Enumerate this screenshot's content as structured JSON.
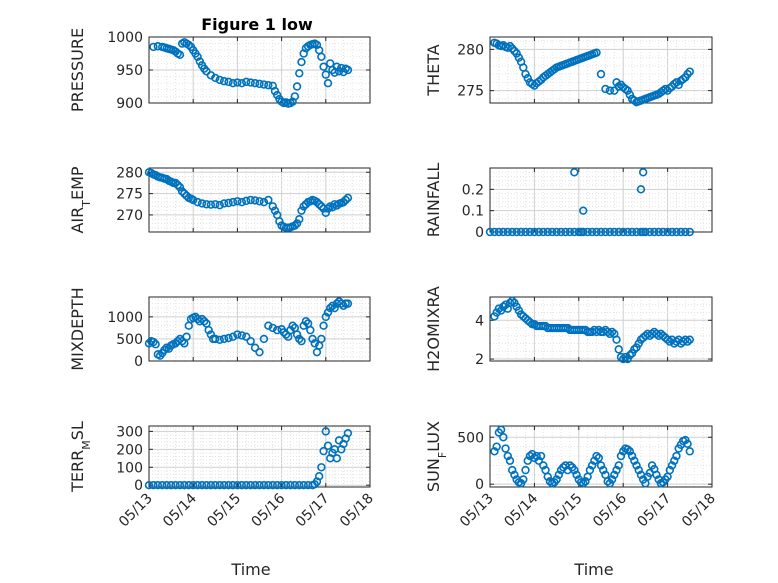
{
  "figure": {
    "title": "Figure 1 low",
    "xlabel": "Time",
    "x_ticks": [
      "05/13",
      "05/14",
      "05/15",
      "05/16",
      "05/17",
      "05/18"
    ]
  },
  "colors": {
    "marker": "#0072BD",
    "grid": "#d9d9d9",
    "axis": "#262626"
  },
  "chart_data": [
    {
      "type": "scatter",
      "ylabel": "PRESSURE",
      "ylim": [
        900,
        1000
      ],
      "yticks": [
        900,
        950,
        1000
      ],
      "ytick_labels": [
        "900",
        "950",
        "1000"
      ],
      "x": [
        13.1,
        13.2,
        13.3,
        13.35,
        13.4,
        13.45,
        13.5,
        13.55,
        13.6,
        13.65,
        13.7,
        13.75,
        13.8,
        13.85,
        13.9,
        13.95,
        14.0,
        14.05,
        14.1,
        14.15,
        14.2,
        14.25,
        14.3,
        14.4,
        14.5,
        14.6,
        14.7,
        14.8,
        14.9,
        15.0,
        15.1,
        15.2,
        15.3,
        15.4,
        15.5,
        15.6,
        15.7,
        15.8,
        15.85,
        15.9,
        15.95,
        16.0,
        16.05,
        16.1,
        16.15,
        16.2,
        16.25,
        16.3,
        16.35,
        16.4,
        16.45,
        16.5,
        16.55,
        16.6,
        16.65,
        16.7,
        16.75,
        16.8,
        16.85,
        16.9,
        16.95,
        17.0,
        17.05,
        17.1,
        17.15,
        17.2,
        17.25,
        17.3,
        17.35,
        17.4,
        17.45,
        17.5
      ],
      "y": [
        985,
        986,
        985,
        984,
        983,
        982,
        981,
        980,
        978,
        975,
        973,
        990,
        992,
        990,
        988,
        985,
        980,
        975,
        970,
        963,
        957,
        952,
        948,
        942,
        938,
        935,
        933,
        932,
        930,
        931,
        930,
        932,
        931,
        930,
        929,
        928,
        927,
        926,
        918,
        912,
        906,
        902,
        900,
        901,
        899,
        900,
        902,
        910,
        925,
        945,
        962,
        975,
        983,
        986,
        988,
        989,
        990,
        988,
        980,
        970,
        955,
        943,
        930,
        960,
        950,
        946,
        955,
        948,
        953,
        947,
        952,
        950
      ]
    },
    {
      "type": "scatter",
      "ylabel": "THETA",
      "ylim": [
        273.5,
        281.5
      ],
      "yticks": [
        275,
        280
      ],
      "ytick_labels": [
        "275",
        "280"
      ],
      "x": [
        13.1,
        13.15,
        13.2,
        13.25,
        13.3,
        13.35,
        13.4,
        13.45,
        13.5,
        13.55,
        13.6,
        13.65,
        13.7,
        13.75,
        13.8,
        13.85,
        13.9,
        13.95,
        14.0,
        14.05,
        14.1,
        14.15,
        14.2,
        14.25,
        14.3,
        14.35,
        14.4,
        14.45,
        14.5,
        14.55,
        14.6,
        14.65,
        14.7,
        14.75,
        14.8,
        14.85,
        14.9,
        14.95,
        15.0,
        15.05,
        15.1,
        15.15,
        15.2,
        15.25,
        15.3,
        15.35,
        15.4,
        15.5,
        15.6,
        15.7,
        15.8,
        15.85,
        15.9,
        15.95,
        16.0,
        16.05,
        16.1,
        16.15,
        16.2,
        16.25,
        16.3,
        16.35,
        16.4,
        16.45,
        16.5,
        16.55,
        16.6,
        16.65,
        16.7,
        16.75,
        16.8,
        16.85,
        16.9,
        16.95,
        17.0,
        17.05,
        17.1,
        17.15,
        17.2,
        17.25,
        17.3,
        17.35,
        17.4,
        17.45,
        17.5
      ],
      "y": [
        280.8,
        280.7,
        280.5,
        280.4,
        280.5,
        280.3,
        280.2,
        280.4,
        280.1,
        279.8,
        279.5,
        279.0,
        278.5,
        277.8,
        277.0,
        276.5,
        276.0,
        275.8,
        275.6,
        275.9,
        276.1,
        276.3,
        276.6,
        276.8,
        277.0,
        277.2,
        277.4,
        277.6,
        277.8,
        277.9,
        278.0,
        278.1,
        278.2,
        278.3,
        278.4,
        278.5,
        278.6,
        278.7,
        278.8,
        278.9,
        279.0,
        279.1,
        279.2,
        279.3,
        279.4,
        279.5,
        279.6,
        277.0,
        275.2,
        275.0,
        275.0,
        276.0,
        275.5,
        275.7,
        275.4,
        275.2,
        275.0,
        274.5,
        274.0,
        273.8,
        273.6,
        273.7,
        273.8,
        273.9,
        274.0,
        274.1,
        274.2,
        274.3,
        274.4,
        274.5,
        274.6,
        274.8,
        275.0,
        275.2,
        275.0,
        275.3,
        275.5,
        275.8,
        276.0,
        275.7,
        276.2,
        276.4,
        276.6,
        277.0,
        277.3
      ]
    },
    {
      "type": "scatter",
      "ylabel": "AIR_TEMP",
      "ylim": [
        266,
        281
      ],
      "yticks": [
        270,
        275,
        280
      ],
      "ytick_labels": [
        "270",
        "275",
        "280"
      ],
      "x": [
        13.0,
        13.05,
        13.1,
        13.15,
        13.2,
        13.25,
        13.3,
        13.35,
        13.4,
        13.45,
        13.5,
        13.55,
        13.6,
        13.65,
        13.7,
        13.75,
        13.8,
        13.85,
        13.9,
        13.95,
        14.0,
        14.1,
        14.2,
        14.3,
        14.4,
        14.5,
        14.6,
        14.7,
        14.8,
        14.9,
        15.0,
        15.1,
        15.2,
        15.3,
        15.4,
        15.5,
        15.6,
        15.7,
        15.8,
        15.85,
        15.9,
        15.95,
        16.0,
        16.05,
        16.1,
        16.15,
        16.2,
        16.25,
        16.3,
        16.35,
        16.4,
        16.45,
        16.5,
        16.55,
        16.6,
        16.65,
        16.7,
        16.75,
        16.8,
        16.85,
        16.9,
        16.95,
        17.0,
        17.05,
        17.1,
        17.15,
        17.2,
        17.25,
        17.3,
        17.35,
        17.4,
        17.45,
        17.5
      ],
      "y": [
        280.0,
        279.8,
        279.5,
        279.3,
        279.0,
        278.8,
        278.7,
        278.5,
        278.4,
        278.0,
        277.8,
        277.5,
        277.5,
        277.0,
        276.5,
        275.5,
        275.0,
        274.5,
        274.0,
        273.8,
        273.5,
        273.0,
        272.7,
        272.5,
        272.4,
        272.5,
        272.3,
        272.7,
        272.8,
        273.0,
        273.2,
        273.0,
        273.3,
        273.5,
        273.4,
        273.2,
        273.0,
        273.5,
        272.0,
        271.0,
        270.0,
        268.5,
        267.5,
        267.2,
        267.0,
        267.0,
        267.1,
        267.3,
        267.5,
        268.0,
        269.0,
        271.0,
        272.0,
        272.5,
        273.0,
        273.2,
        273.5,
        273.3,
        273.0,
        272.5,
        272.0,
        271.5,
        270.5,
        271.5,
        272.0,
        271.8,
        272.5,
        272.2,
        272.6,
        272.8,
        273.0,
        273.5,
        274.0
      ]
    },
    {
      "type": "scatter",
      "ylabel": "RAINFALL",
      "ylim": [
        0,
        0.3
      ],
      "yticks": [
        0,
        0.1,
        0.2
      ],
      "ytick_labels": [
        "0",
        "0.1",
        "0.2"
      ],
      "x": [
        13.0,
        13.1,
        13.2,
        13.3,
        13.4,
        13.5,
        13.6,
        13.7,
        13.8,
        13.9,
        14.0,
        14.1,
        14.2,
        14.3,
        14.4,
        14.5,
        14.6,
        14.7,
        14.8,
        14.9,
        15.0,
        15.05,
        15.1,
        15.2,
        15.3,
        15.4,
        15.5,
        15.6,
        15.7,
        15.8,
        15.9,
        16.0,
        16.1,
        16.2,
        16.3,
        16.4,
        16.45,
        16.5,
        16.6,
        16.7,
        16.8,
        16.9,
        17.0,
        17.1,
        17.2,
        17.3,
        17.4,
        17.5,
        14.9,
        15.1,
        16.4,
        16.45
      ],
      "y": [
        0,
        0,
        0,
        0,
        0,
        0,
        0,
        0,
        0,
        0,
        0,
        0,
        0,
        0,
        0,
        0,
        0,
        0,
        0,
        0,
        0,
        0,
        0,
        0,
        0,
        0,
        0,
        0,
        0,
        0,
        0,
        0,
        0,
        0,
        0,
        0,
        0,
        0,
        0,
        0,
        0,
        0,
        0,
        0,
        0,
        0,
        0,
        0,
        0.28,
        0.1,
        0.2,
        0.28
      ]
    },
    {
      "type": "scatter",
      "ylabel": "MIXDEPTH",
      "ylim": [
        0,
        1450
      ],
      "yticks": [
        0,
        500,
        1000
      ],
      "ytick_labels": [
        "0",
        "500",
        "1000"
      ],
      "x": [
        13.0,
        13.05,
        13.1,
        13.15,
        13.2,
        13.25,
        13.3,
        13.35,
        13.4,
        13.45,
        13.5,
        13.55,
        13.6,
        13.65,
        13.7,
        13.75,
        13.8,
        13.85,
        13.9,
        13.95,
        14.0,
        14.05,
        14.1,
        14.15,
        14.2,
        14.25,
        14.3,
        14.35,
        14.4,
        14.45,
        14.5,
        14.6,
        14.7,
        14.8,
        14.9,
        15.0,
        15.1,
        15.2,
        15.3,
        15.4,
        15.5,
        15.6,
        15.7,
        15.8,
        15.9,
        16.0,
        16.05,
        16.1,
        16.15,
        16.2,
        16.25,
        16.3,
        16.35,
        16.4,
        16.45,
        16.5,
        16.55,
        16.6,
        16.65,
        16.7,
        16.75,
        16.8,
        16.85,
        16.9,
        16.95,
        17.0,
        17.05,
        17.1,
        17.15,
        17.2,
        17.25,
        17.3,
        17.35,
        17.4,
        17.45,
        17.5
      ],
      "y": [
        400,
        450,
        430,
        380,
        150,
        120,
        180,
        250,
        300,
        280,
        350,
        380,
        400,
        450,
        500,
        450,
        400,
        550,
        800,
        950,
        980,
        1000,
        950,
        900,
        950,
        900,
        850,
        700,
        600,
        500,
        500,
        480,
        500,
        520,
        550,
        600,
        580,
        550,
        450,
        300,
        200,
        500,
        800,
        750,
        700,
        720,
        650,
        600,
        550,
        700,
        800,
        750,
        600,
        500,
        450,
        800,
        900,
        850,
        700,
        500,
        400,
        200,
        350,
        500,
        800,
        1000,
        1100,
        1200,
        1250,
        1200,
        1300,
        1350,
        1300,
        1250,
        1300,
        1300
      ]
    },
    {
      "type": "scatter",
      "ylabel": "H2OMIXRA",
      "ylim": [
        1.9,
        5.2
      ],
      "yticks": [
        2,
        4
      ],
      "ytick_labels": [
        "2",
        "4"
      ],
      "x": [
        13.1,
        13.15,
        13.2,
        13.25,
        13.3,
        13.35,
        13.4,
        13.45,
        13.5,
        13.55,
        13.6,
        13.65,
        13.7,
        13.75,
        13.8,
        13.85,
        13.9,
        13.95,
        14.0,
        14.05,
        14.1,
        14.15,
        14.2,
        14.25,
        14.3,
        14.35,
        14.4,
        14.45,
        14.5,
        14.55,
        14.6,
        14.65,
        14.7,
        14.75,
        14.8,
        14.85,
        14.9,
        14.95,
        15.0,
        15.05,
        15.1,
        15.15,
        15.2,
        15.25,
        15.3,
        15.35,
        15.4,
        15.45,
        15.5,
        15.55,
        15.6,
        15.65,
        15.7,
        15.75,
        15.8,
        15.85,
        15.9,
        15.95,
        16.0,
        16.05,
        16.1,
        16.15,
        16.2,
        16.25,
        16.3,
        16.35,
        16.4,
        16.45,
        16.5,
        16.55,
        16.6,
        16.65,
        16.7,
        16.75,
        16.8,
        16.85,
        16.9,
        16.95,
        17.0,
        17.05,
        17.1,
        17.15,
        17.2,
        17.25,
        17.3,
        17.35,
        17.4,
        17.45,
        17.5
      ],
      "y": [
        4.2,
        4.4,
        4.6,
        4.5,
        4.7,
        4.8,
        4.6,
        4.9,
        5.0,
        4.9,
        4.7,
        4.5,
        4.3,
        4.2,
        4.1,
        4.0,
        3.9,
        3.8,
        3.8,
        3.7,
        3.7,
        3.7,
        3.7,
        3.7,
        3.6,
        3.6,
        3.6,
        3.6,
        3.6,
        3.6,
        3.6,
        3.6,
        3.6,
        3.6,
        3.5,
        3.5,
        3.5,
        3.5,
        3.5,
        3.5,
        3.5,
        3.5,
        3.4,
        3.4,
        3.4,
        3.5,
        3.4,
        3.5,
        3.4,
        3.4,
        3.5,
        3.4,
        3.3,
        3.4,
        3.3,
        3.0,
        2.5,
        2.1,
        2.0,
        2.1,
        2.0,
        2.2,
        2.3,
        2.5,
        2.6,
        2.8,
        3.0,
        3.1,
        3.2,
        3.3,
        3.2,
        3.3,
        3.4,
        3.3,
        3.2,
        3.3,
        3.2,
        3.1,
        3.0,
        2.9,
        3.0,
        2.8,
        2.9,
        3.0,
        2.8,
        2.9,
        3.0,
        2.9,
        3.0
      ]
    },
    {
      "type": "scatter",
      "ylabel": "TERR_MSL",
      "ylim": [
        -10,
        330
      ],
      "yticks": [
        0,
        100,
        200,
        300
      ],
      "ytick_labels": [
        "0",
        "100",
        "200",
        "300"
      ],
      "x": [
        13.0,
        13.1,
        13.2,
        13.3,
        13.4,
        13.5,
        13.6,
        13.7,
        13.8,
        13.9,
        14.0,
        14.1,
        14.2,
        14.3,
        14.4,
        14.5,
        14.6,
        14.7,
        14.8,
        14.9,
        15.0,
        15.1,
        15.2,
        15.3,
        15.4,
        15.5,
        15.6,
        15.7,
        15.8,
        15.9,
        16.0,
        16.1,
        16.2,
        16.3,
        16.4,
        16.5,
        16.6,
        16.7,
        16.75,
        16.8,
        16.85,
        16.9,
        16.95,
        17.0,
        17.05,
        17.1,
        17.15,
        17.2,
        17.25,
        17.3,
        17.35,
        17.4,
        17.45,
        17.5
      ],
      "y": [
        0,
        0,
        0,
        0,
        0,
        0,
        0,
        0,
        0,
        0,
        0,
        0,
        0,
        0,
        0,
        0,
        0,
        0,
        0,
        0,
        0,
        0,
        0,
        0,
        0,
        0,
        0,
        0,
        0,
        0,
        0,
        0,
        0,
        0,
        0,
        0,
        0,
        0,
        5,
        20,
        50,
        100,
        190,
        300,
        220,
        150,
        180,
        200,
        150,
        250,
        200,
        230,
        260,
        290
      ]
    },
    {
      "type": "scatter",
      "ylabel": "SUN_FLUX",
      "ylim": [
        -30,
        620
      ],
      "yticks": [
        0,
        500
      ],
      "ytick_labels": [
        "0",
        "500"
      ],
      "x": [
        13.1,
        13.15,
        13.2,
        13.25,
        13.3,
        13.35,
        13.4,
        13.45,
        13.5,
        13.55,
        13.6,
        13.65,
        13.7,
        13.75,
        13.8,
        13.85,
        13.9,
        13.95,
        14.0,
        14.05,
        14.1,
        14.15,
        14.2,
        14.25,
        14.3,
        14.35,
        14.4,
        14.45,
        14.5,
        14.55,
        14.6,
        14.65,
        14.7,
        14.75,
        14.8,
        14.85,
        14.9,
        14.95,
        15.0,
        15.05,
        15.1,
        15.15,
        15.2,
        15.25,
        15.3,
        15.35,
        15.4,
        15.45,
        15.5,
        15.55,
        15.6,
        15.65,
        15.7,
        15.75,
        15.8,
        15.85,
        15.9,
        15.95,
        16.0,
        16.05,
        16.1,
        16.15,
        16.2,
        16.25,
        16.3,
        16.35,
        16.4,
        16.45,
        16.5,
        16.55,
        16.6,
        16.65,
        16.7,
        16.75,
        16.8,
        16.85,
        16.9,
        16.95,
        17.0,
        17.05,
        17.1,
        17.15,
        17.2,
        17.25,
        17.3,
        17.35,
        17.4,
        17.45,
        17.5
      ],
      "y": [
        350,
        400,
        550,
        580,
        500,
        380,
        300,
        250,
        150,
        100,
        50,
        20,
        10,
        50,
        150,
        250,
        300,
        320,
        280,
        300,
        250,
        300,
        200,
        150,
        80,
        30,
        10,
        20,
        50,
        100,
        150,
        180,
        200,
        150,
        200,
        180,
        150,
        100,
        50,
        20,
        10,
        30,
        80,
        150,
        200,
        250,
        300,
        280,
        200,
        150,
        100,
        30,
        10,
        50,
        100,
        150,
        200,
        300,
        350,
        380,
        370,
        350,
        300,
        250,
        200,
        150,
        100,
        50,
        10,
        80,
        120,
        200,
        160,
        100,
        50,
        10,
        20,
        50,
        80,
        150,
        200,
        250,
        300,
        380,
        420,
        460,
        470,
        430,
        350
      ]
    }
  ]
}
